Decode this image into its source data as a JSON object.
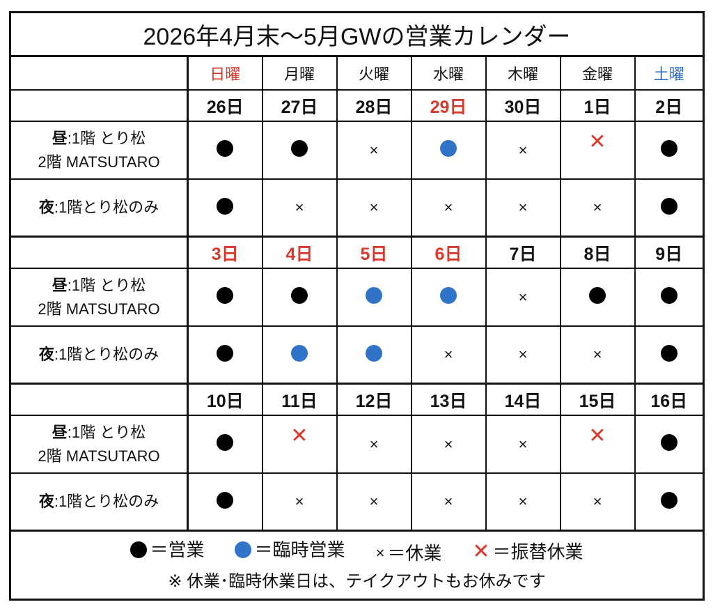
{
  "title": "2026年4月末〜5月GWの営業カレンダー",
  "weekdays": [
    {
      "label": "日曜",
      "color": "red"
    },
    {
      "label": "月曜",
      "color": ""
    },
    {
      "label": "火曜",
      "color": ""
    },
    {
      "label": "水曜",
      "color": ""
    },
    {
      "label": "木曜",
      "color": ""
    },
    {
      "label": "金曜",
      "color": ""
    },
    {
      "label": "土曜",
      "color": "blue"
    }
  ],
  "row_labels": {
    "lunch_bold": "昼",
    "lunch_line1": ":1階 とり松",
    "lunch_line2": "2階 MATSUTARO",
    "dinner_bold": "夜",
    "dinner_text": ":1階とり松のみ"
  },
  "weeks": [
    {
      "dates": [
        {
          "d": "26日",
          "red": false
        },
        {
          "d": "27日",
          "red": false
        },
        {
          "d": "28日",
          "red": false
        },
        {
          "d": "29日",
          "red": true
        },
        {
          "d": "30日",
          "red": false
        },
        {
          "d": "1日",
          "red": false
        },
        {
          "d": "2日",
          "red": false
        }
      ],
      "lunch": [
        "open",
        "open",
        "closed",
        "temp",
        "closed",
        "sub",
        "open"
      ],
      "dinner": [
        "open",
        "closed",
        "closed",
        "closed",
        "closed",
        "closed",
        "open"
      ]
    },
    {
      "dates": [
        {
          "d": "3日",
          "red": true
        },
        {
          "d": "4日",
          "red": true
        },
        {
          "d": "5日",
          "red": true
        },
        {
          "d": "6日",
          "red": true
        },
        {
          "d": "7日",
          "red": false
        },
        {
          "d": "8日",
          "red": false
        },
        {
          "d": "9日",
          "red": false
        }
      ],
      "lunch": [
        "open",
        "open",
        "temp",
        "temp",
        "closed",
        "open",
        "open"
      ],
      "dinner": [
        "open",
        "temp",
        "temp",
        "closed",
        "closed",
        "closed",
        "open"
      ]
    },
    {
      "dates": [
        {
          "d": "10日",
          "red": false
        },
        {
          "d": "11日",
          "red": false
        },
        {
          "d": "12日",
          "red": false
        },
        {
          "d": "13日",
          "red": false
        },
        {
          "d": "14日",
          "red": false
        },
        {
          "d": "15日",
          "red": false
        },
        {
          "d": "16日",
          "red": false
        }
      ],
      "lunch": [
        "open",
        "sub",
        "closed",
        "closed",
        "closed",
        "sub",
        "open"
      ],
      "dinner": [
        "open",
        "closed",
        "closed",
        "closed",
        "closed",
        "closed",
        "open"
      ]
    }
  ],
  "legend": {
    "open": "＝営業",
    "temp": "＝臨時営業",
    "closed": "＝休業",
    "sub": "＝振替休業",
    "closed_symbol": "×",
    "sub_symbol": "✕"
  },
  "note": "※ 休業･臨時休業日は、テイクアウトもお休みです",
  "colors": {
    "red": "#d9382c",
    "blue": "#2f74c8"
  }
}
